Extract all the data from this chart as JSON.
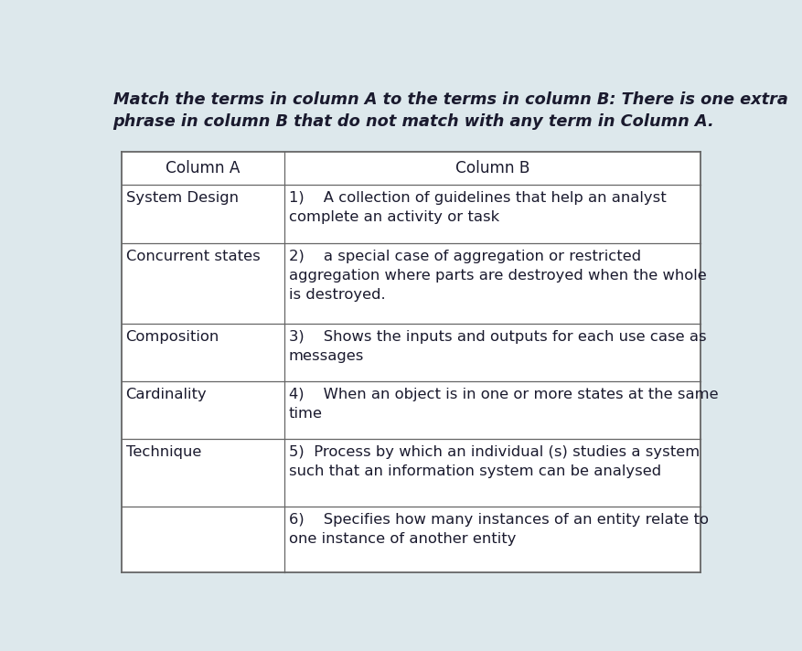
{
  "background_color": "#dde8ec",
  "title_line1": "Match the terms in column A to the terms in column B: There is one extra",
  "title_line2": "phrase in column B that do not match with any term in Column A.",
  "table_bg": "#ffffff",
  "cell_bg": "#eaf3f7",
  "text_color": "#1a1a2e",
  "border_color": "#666666",
  "col_a_header": "Column A",
  "col_b_header": "Column B",
  "col_a_items": [
    "System Design",
    "Concurrent states",
    "Composition",
    "Cardinality",
    "Technique",
    ""
  ],
  "col_b_items": [
    "1)    A collection of guidelines that help an analyst\ncomplete an activity or task",
    "2)    a special case of aggregation or restricted\naggregation where parts are destroyed when the whole\nis destroyed.",
    "3)    Shows the inputs and outputs for each use case as\nmessages",
    "4)    When an object is in one or more states at the same\ntime",
    "5)  Process by which an individual (s) studies a system\nsuch that an information system can be analysed",
    "6)    Specifies how many instances of an entity relate to\none instance of another entity"
  ],
  "title_fontsize": 12.8,
  "cell_fontsize": 11.8,
  "header_fontsize": 12.2
}
